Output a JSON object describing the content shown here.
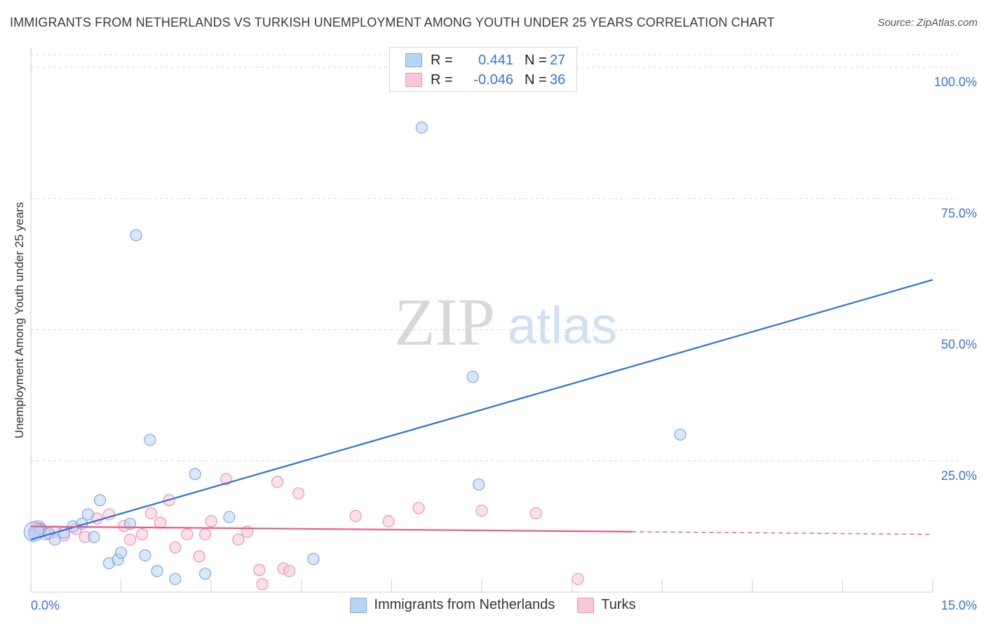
{
  "header": {
    "title": "IMMIGRANTS FROM NETHERLANDS VS TURKISH UNEMPLOYMENT AMONG YOUTH UNDER 25 YEARS CORRELATION CHART",
    "source": "Source: ZipAtlas.com"
  },
  "watermark": {
    "zip": "ZIP",
    "atlas": "atlas"
  },
  "legend_top": {
    "rows": [
      {
        "r_label": "R =",
        "r_value": "0.441",
        "n_label": "N =",
        "n_value": "27"
      },
      {
        "r_label": "R =",
        "r_value": "-0.046",
        "n_label": "N =",
        "n_value": "36"
      }
    ]
  },
  "legend_bottom": {
    "items": [
      {
        "label": "Immigrants from Netherlands"
      },
      {
        "label": "Turks"
      }
    ]
  },
  "colors": {
    "blue_fill": "#b8d4f5",
    "blue_stroke": "#7aaae6",
    "blue_line": "#2f72cf",
    "pink_fill": "#f9c8d8",
    "pink_stroke": "#ee92b0",
    "pink_line": "#e8578a",
    "grid": "#d9d9d9",
    "tick_text": "#3c74c9"
  },
  "chart_data": {
    "type": "scatter",
    "title": "IMMIGRANTS FROM NETHERLANDS VS TURKISH UNEMPLOYMENT AMONG YOUTH UNDER 25 YEARS CORRELATION CHART",
    "xlabel": "",
    "ylabel": "Unemployment Among Youth under 25 years",
    "xlim": [
      0,
      15
    ],
    "ylim": [
      0,
      100
    ],
    "x_ticks": [
      {
        "value": 0,
        "label": "0.0%"
      },
      {
        "value": 15,
        "label": "15.0%"
      }
    ],
    "y_ticks": [
      {
        "value": 25,
        "label": "25.0%"
      },
      {
        "value": 50,
        "label": "50.0%"
      },
      {
        "value": 75,
        "label": "75.0%"
      },
      {
        "value": 100,
        "label": "100.0%"
      }
    ],
    "series": [
      {
        "name": "Immigrants from Netherlands",
        "color": "blue",
        "r": 0.441,
        "n": 27,
        "trend": {
          "x0": 0,
          "y0": 10.0,
          "x1": 15,
          "y1": 59.5,
          "solid_until": 15
        },
        "points": [
          [
            0.05,
            11.0
          ],
          [
            0.15,
            12.0
          ],
          [
            0.3,
            11.2
          ],
          [
            0.4,
            10.0
          ],
          [
            0.55,
            11.3
          ],
          [
            0.7,
            12.5
          ],
          [
            0.85,
            13.0
          ],
          [
            0.95,
            14.8
          ],
          [
            1.05,
            10.5
          ],
          [
            1.15,
            17.5
          ],
          [
            1.3,
            5.5
          ],
          [
            1.45,
            6.2
          ],
          [
            1.5,
            7.5
          ],
          [
            1.65,
            13.0
          ],
          [
            1.75,
            68.0
          ],
          [
            1.9,
            7.0
          ],
          [
            1.98,
            29.0
          ],
          [
            2.1,
            4.0
          ],
          [
            2.4,
            2.5
          ],
          [
            2.73,
            22.5
          ],
          [
            2.9,
            3.5
          ],
          [
            3.3,
            14.3
          ],
          [
            4.7,
            6.3
          ],
          [
            6.5,
            88.5
          ],
          [
            7.35,
            41.0
          ],
          [
            7.45,
            20.5
          ],
          [
            10.8,
            30.0
          ]
        ]
      },
      {
        "name": "Turks",
        "color": "pink",
        "r": -0.046,
        "n": 36,
        "trend": {
          "x0": 0,
          "y0": 12.5,
          "x1": 15,
          "y1": 11.0,
          "solid_until": 10.0
        },
        "points": [
          [
            0.05,
            11.5
          ],
          [
            0.15,
            12.2
          ],
          [
            0.25,
            11.0
          ],
          [
            0.4,
            11.5
          ],
          [
            0.55,
            10.8
          ],
          [
            0.75,
            12.0
          ],
          [
            0.9,
            10.5
          ],
          [
            1.1,
            14.0
          ],
          [
            1.3,
            14.8
          ],
          [
            1.55,
            12.6
          ],
          [
            1.65,
            10.0
          ],
          [
            1.85,
            11.0
          ],
          [
            2.0,
            15.0
          ],
          [
            2.15,
            13.2
          ],
          [
            2.3,
            17.5
          ],
          [
            2.4,
            8.5
          ],
          [
            2.6,
            11.0
          ],
          [
            2.8,
            6.8
          ],
          [
            2.9,
            11.0
          ],
          [
            3.0,
            13.5
          ],
          [
            3.25,
            21.5
          ],
          [
            3.45,
            10.0
          ],
          [
            3.6,
            11.5
          ],
          [
            3.8,
            4.2
          ],
          [
            3.85,
            1.5
          ],
          [
            4.1,
            21.0
          ],
          [
            4.2,
            4.5
          ],
          [
            4.3,
            4.0
          ],
          [
            4.45,
            18.8
          ],
          [
            5.4,
            14.5
          ],
          [
            5.95,
            13.5
          ],
          [
            6.45,
            16.0
          ],
          [
            7.5,
            15.5
          ],
          [
            8.4,
            15.0
          ],
          [
            9.1,
            2.5
          ],
          [
            0.1,
            12.0
          ]
        ]
      }
    ]
  }
}
